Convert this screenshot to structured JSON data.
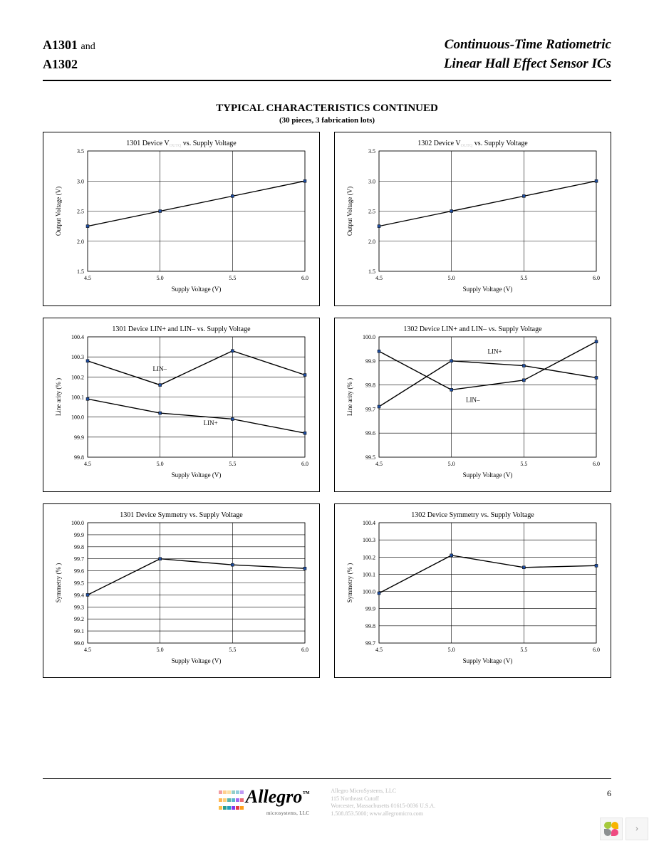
{
  "header": {
    "left_line1_part_a": "A1301",
    "left_line1_and": "and",
    "left_line2": "A1302",
    "right_line1": "Continuous-Time Ratiometric",
    "right_line2": "Linear Hall Effect Sensor ICs"
  },
  "section": {
    "title": "TYPICAL CHARACTERISTICS CONTINUED",
    "subtitle": "(30 pieces, 3 fabrication lots)"
  },
  "common": {
    "xlabel": "Supply Voltage (V)",
    "xlim": [
      4.5,
      6.0
    ],
    "xticks": [
      4.5,
      5.0,
      5.5,
      6.0
    ],
    "grid_color": "#000000",
    "background_color": "#ffffff",
    "line_color": "#000000",
    "marker_fill": "#1f4ea1",
    "marker_size": 4,
    "axis_fontsize": 9,
    "title_fontsize": 10,
    "tick_fontsize": 8
  },
  "charts": [
    {
      "id": "c1",
      "title_pre": "1301 Device V",
      "title_sub": "OUTQ",
      "title_post": " vs. Supply Voltage",
      "ylabel": "Output Voltage (V)",
      "ylim": [
        1.5,
        3.5
      ],
      "yticks": [
        1.5,
        2.0,
        2.5,
        3.0,
        3.5
      ],
      "series": [
        {
          "x": [
            4.5,
            5.0,
            5.5,
            6.0
          ],
          "y": [
            2.25,
            2.5,
            2.75,
            3.0
          ]
        }
      ]
    },
    {
      "id": "c2",
      "title_pre": "1302 Device V",
      "title_sub": "OUTQ",
      "title_post": " vs. Supply Voltage",
      "ylabel": "Output Voltage (V)",
      "ylim": [
        1.5,
        3.5
      ],
      "yticks": [
        1.5,
        2.0,
        2.5,
        3.0,
        3.5
      ],
      "series": [
        {
          "x": [
            4.5,
            5.0,
            5.5,
            6.0
          ],
          "y": [
            2.25,
            2.5,
            2.75,
            3.0
          ]
        }
      ]
    },
    {
      "id": "c3",
      "title_pre": "1301 Device LIN+ and LIN– vs. Supply Voltage",
      "title_sub": "",
      "title_post": "",
      "ylabel": "Line arity (% )",
      "ylim": [
        99.8,
        100.4
      ],
      "yticks": [
        99.8,
        99.9,
        100.0,
        100.1,
        100.2,
        100.3,
        100.4
      ],
      "series": [
        {
          "label": "LIN–",
          "label_x": 4.95,
          "label_y": 100.23,
          "x": [
            4.5,
            5.0,
            5.5,
            6.0
          ],
          "y": [
            100.28,
            100.16,
            100.33,
            100.21
          ]
        },
        {
          "label": "LIN+",
          "label_x": 5.3,
          "label_y": 99.96,
          "x": [
            4.5,
            5.0,
            5.5,
            6.0
          ],
          "y": [
            100.09,
            100.02,
            99.99,
            99.92
          ]
        }
      ]
    },
    {
      "id": "c4",
      "title_pre": "1302 Device LIN+ and LIN– vs. Supply Voltage",
      "title_sub": "",
      "title_post": "",
      "ylabel": "Line arity (% )",
      "ylim": [
        99.5,
        100.0
      ],
      "yticks": [
        99.5,
        99.6,
        99.7,
        99.8,
        99.9,
        100.0
      ],
      "series": [
        {
          "label": "LIN+",
          "label_x": 5.25,
          "label_y": 99.93,
          "x": [
            4.5,
            5.0,
            5.5,
            6.0
          ],
          "y": [
            99.71,
            99.9,
            99.88,
            99.83
          ]
        },
        {
          "label": "LIN–",
          "label_x": 5.1,
          "label_y": 99.73,
          "x": [
            4.5,
            5.0,
            5.5,
            6.0
          ],
          "y": [
            99.94,
            99.78,
            99.82,
            99.98
          ]
        }
      ]
    },
    {
      "id": "c5",
      "title_pre": "1301 Device Symmetry vs. Supply Voltage",
      "title_sub": "",
      "title_post": "",
      "ylabel": "Symmetry (% )",
      "ylim": [
        99.0,
        100.0
      ],
      "yticks": [
        99.0,
        99.1,
        99.2,
        99.3,
        99.4,
        99.5,
        99.6,
        99.7,
        99.8,
        99.9,
        100.0
      ],
      "series": [
        {
          "x": [
            4.5,
            5.0,
            5.5,
            6.0
          ],
          "y": [
            99.4,
            99.7,
            99.65,
            99.62
          ]
        }
      ]
    },
    {
      "id": "c6",
      "title_pre": "1302 Device Symmetry vs. Supply Voltage",
      "title_sub": "",
      "title_post": "",
      "ylabel": "Symmetry (% )",
      "ylim": [
        99.7,
        100.4
      ],
      "yticks": [
        99.7,
        99.8,
        99.9,
        100.0,
        100.1,
        100.2,
        100.3,
        100.4
      ],
      "series": [
        {
          "x": [
            4.5,
            5.0,
            5.5,
            6.0
          ],
          "y": [
            99.99,
            100.21,
            100.14,
            100.15
          ]
        }
      ]
    }
  ],
  "footer": {
    "logo_text": "Allegro",
    "logo_tm": "™",
    "logo_sub": "microsystems, LLC",
    "logo_colors": [
      "#e63946",
      "#ff9f1c",
      "#fcbf49",
      "#2a9d8f",
      "#219ebc",
      "#8338ec"
    ],
    "addr": [
      "Allegro MicroSystems, LLC",
      "115 Northeast Cutoff",
      "Worcester, Massachusetts 01615-0036 U.S.A.",
      "1.508.853.5000; www.allegromicro.com"
    ],
    "page": "6"
  }
}
